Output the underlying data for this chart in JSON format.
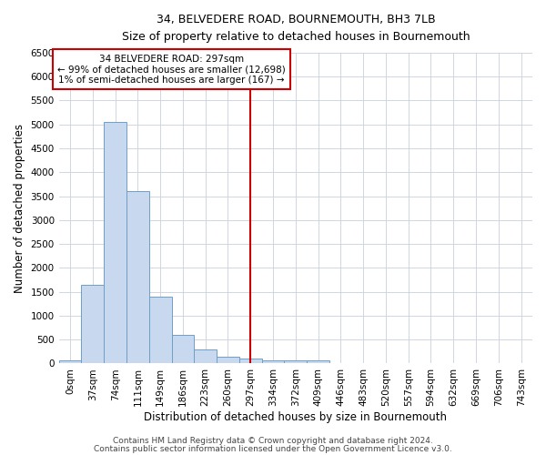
{
  "title": "34, BELVEDERE ROAD, BOURNEMOUTH, BH3 7LB",
  "subtitle": "Size of property relative to detached houses in Bournemouth",
  "xlabel": "Distribution of detached houses by size in Bournemouth",
  "ylabel": "Number of detached properties",
  "bar_labels": [
    "0sqm",
    "37sqm",
    "74sqm",
    "111sqm",
    "149sqm",
    "186sqm",
    "223sqm",
    "260sqm",
    "297sqm",
    "334sqm",
    "372sqm",
    "409sqm",
    "446sqm",
    "483sqm",
    "520sqm",
    "557sqm",
    "594sqm",
    "632sqm",
    "669sqm",
    "706sqm",
    "743sqm"
  ],
  "bar_values": [
    75,
    1650,
    5050,
    3600,
    1400,
    600,
    300,
    150,
    100,
    75,
    60,
    75,
    0,
    0,
    0,
    0,
    0,
    0,
    0,
    0,
    0
  ],
  "bar_color_fill": "#c8d9ef",
  "bar_color_edge": "#6e9ec8",
  "vline_x_index": 8,
  "vline_color": "#cc0000",
  "ylim": [
    0,
    6500
  ],
  "yticks": [
    0,
    500,
    1000,
    1500,
    2000,
    2500,
    3000,
    3500,
    4000,
    4500,
    5000,
    5500,
    6000,
    6500
  ],
  "annotation_title": "34 BELVEDERE ROAD: 297sqm",
  "annotation_line1": "← 99% of detached houses are smaller (12,698)",
  "annotation_line2": "1% of semi-detached houses are larger (167) →",
  "annotation_box_color": "#ffffff",
  "annotation_box_edge": "#cc0000",
  "background_color": "#ffffff",
  "grid_color": "#c8d0dc",
  "footer1": "Contains HM Land Registry data © Crown copyright and database right 2024.",
  "footer2": "Contains public sector information licensed under the Open Government Licence v3.0."
}
